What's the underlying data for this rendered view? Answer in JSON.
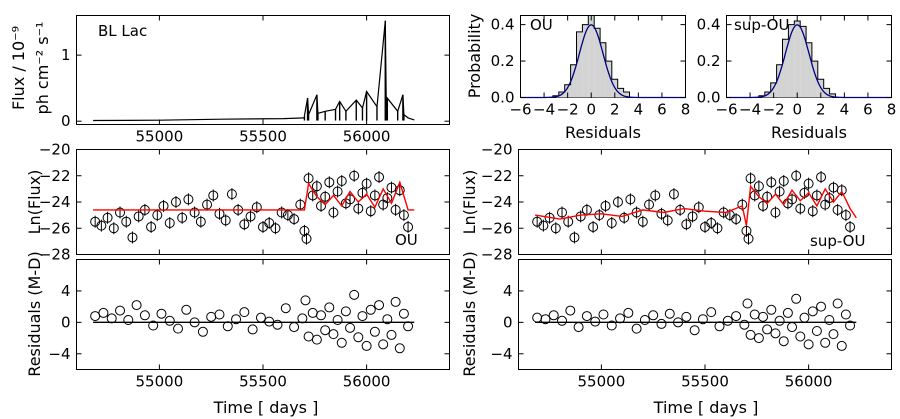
{
  "chart_data": [
    {
      "id": "flux",
      "type": "line",
      "annotation": "BL Lac",
      "ylabel_lines": [
        "Flux / 10⁻⁹",
        "ph cm⁻² s⁻¹"
      ],
      "xlim": [
        54600,
        56400
      ],
      "ylim": [
        -0.05,
        1.6
      ],
      "xticks": [
        55000,
        55500,
        56000
      ],
      "xticklabels": [
        "55000",
        "55500",
        "56000"
      ],
      "yticks": [
        0,
        1
      ],
      "yticklabels": [
        "0",
        "1"
      ],
      "baseline": 0.01,
      "series": [
        {
          "values_x": [
            54680,
            55000,
            55300,
            55600,
            55700
          ],
          "values_y": [
            0.01,
            0.015,
            0.03,
            0.04,
            0.05
          ]
        },
        {
          "values_x": [
            55700,
            55715,
            55720,
            55760,
            55765,
            55800,
            55850,
            55870,
            55900,
            55950,
            55980,
            56000,
            56050,
            56090,
            56095,
            56100,
            56150,
            56175,
            56180,
            56200,
            56230
          ],
          "values_y": [
            0.08,
            0.35,
            0.1,
            0.4,
            0.12,
            0.15,
            0.18,
            0.3,
            0.15,
            0.32,
            0.2,
            0.45,
            0.22,
            1.52,
            0.2,
            0.35,
            0.15,
            0.4,
            0.1,
            0.05,
            0.02
          ]
        }
      ]
    },
    {
      "id": "hist-ou",
      "type": "bar",
      "annotation": "OU",
      "ylabel": "Probability",
      "xlabel": "Residuals",
      "xlim": [
        -6,
        8
      ],
      "ylim": [
        0,
        0.45
      ],
      "xticks": [
        -6,
        -4,
        -2,
        0,
        2,
        4,
        6,
        8
      ],
      "xticklabels": [
        "−6",
        "−4",
        "−2",
        "0",
        "2",
        "4",
        "6",
        "8"
      ],
      "yticks": [
        0,
        0.2,
        0.4
      ],
      "yticklabels": [
        "0.0",
        "0.2",
        "0.4"
      ],
      "bin_centers": [
        -3.0,
        -2.5,
        -2.0,
        -1.5,
        -1.0,
        -0.5,
        0.0,
        0.5,
        1.0,
        1.5,
        2.0,
        2.5,
        3.0
      ],
      "values": [
        0.01,
        0.03,
        0.07,
        0.18,
        0.36,
        0.4,
        0.45,
        0.38,
        0.3,
        0.2,
        0.1,
        0.05,
        0.03
      ],
      "bin_width": 0.5,
      "fit_mean": 0.0,
      "fit_sigma": 1.0
    },
    {
      "id": "hist-supou",
      "type": "bar",
      "annotation": "sup-OU",
      "xlabel": "Residuals",
      "xlim": [
        -6,
        8
      ],
      "ylim": [
        0,
        0.45
      ],
      "xticks": [
        -6,
        -4,
        -2,
        0,
        2,
        4,
        6,
        8
      ],
      "xticklabels": [
        "−6",
        "−4",
        "−2",
        "0",
        "2",
        "4",
        "6",
        "8"
      ],
      "yticks": [
        0,
        0.2,
        0.4
      ],
      "yticklabels": [
        "0.0",
        "0.2",
        "0.4"
      ],
      "bin_centers": [
        -3.0,
        -2.5,
        -2.0,
        -1.5,
        -1.0,
        -0.5,
        0.0,
        0.5,
        1.0,
        1.5,
        2.0,
        2.5,
        3.0
      ],
      "values": [
        0.01,
        0.03,
        0.08,
        0.18,
        0.32,
        0.4,
        0.42,
        0.39,
        0.3,
        0.2,
        0.1,
        0.05,
        0.02
      ],
      "bin_width": 0.5,
      "fit_mean": 0.0,
      "fit_sigma": 1.0
    },
    {
      "id": "lnflux-ou",
      "type": "scatter",
      "annotation": "OU",
      "ylabel": "Ln(Flux)",
      "xlim": [
        54600,
        56400
      ],
      "ylim": [
        -28,
        -20
      ],
      "xticks": [
        55000,
        55500,
        56000
      ],
      "yticks": [
        -28,
        -26,
        -24,
        -22,
        -20
      ],
      "yticklabels": [
        "−28",
        "−26",
        "−24",
        "−22",
        "−20"
      ],
      "points_x": [
        54690,
        54720,
        54750,
        54780,
        54810,
        54840,
        54870,
        54900,
        54930,
        54960,
        54990,
        55020,
        55050,
        55080,
        55110,
        55140,
        55170,
        55200,
        55230,
        55260,
        55290,
        55320,
        55350,
        55380,
        55410,
        55440,
        55470,
        55500,
        55530,
        55560,
        55590,
        55620,
        55650,
        55680,
        55700,
        55710,
        55720,
        55740,
        55760,
        55780,
        55800,
        55820,
        55840,
        55860,
        55880,
        55900,
        55920,
        55940,
        55960,
        55980,
        56000,
        56020,
        56040,
        56060,
        56080,
        56100,
        56120,
        56140,
        56160,
        56180,
        56200
      ],
      "points_y": [
        -25.5,
        -25.8,
        -25.2,
        -26.0,
        -24.8,
        -25.5,
        -26.7,
        -25.1,
        -24.6,
        -25.9,
        -25.0,
        -24.3,
        -25.6,
        -24.0,
        -25.2,
        -23.8,
        -24.8,
        -25.5,
        -24.2,
        -23.5,
        -24.9,
        -25.4,
        -23.4,
        -24.6,
        -25.7,
        -25.1,
        -24.4,
        -25.9,
        -25.6,
        -26.0,
        -24.8,
        -25.0,
        -25.3,
        -24.2,
        -26.2,
        -26.8,
        -22.2,
        -23.5,
        -22.8,
        -24.3,
        -23.6,
        -22.5,
        -24.8,
        -23.2,
        -22.4,
        -24.1,
        -23.8,
        -22.0,
        -24.5,
        -23.3,
        -22.6,
        -24.7,
        -23.5,
        -22.1,
        -24.2,
        -23.7,
        -22.9,
        -24.6,
        -23.1,
        -25.0,
        -25.9
      ],
      "model_x": [
        54680,
        55000,
        55300,
        55600,
        55700,
        55720,
        55760,
        55800,
        55840,
        55880,
        55920,
        55960,
        56000,
        56040,
        56080,
        56120,
        56160,
        56200,
        56230
      ],
      "model_y": [
        -24.6,
        -24.6,
        -24.6,
        -24.6,
        -24.6,
        -22.6,
        -23.6,
        -24.2,
        -23.5,
        -24.3,
        -23.2,
        -24.0,
        -23.4,
        -24.4,
        -23.0,
        -24.1,
        -22.5,
        -24.6,
        -24.6
      ],
      "model_color": "#ff0000"
    },
    {
      "id": "lnflux-supou",
      "type": "scatter",
      "annotation": "sup-OU",
      "ylabel": "Ln(Flux)",
      "xlim": [
        54600,
        56400
      ],
      "ylim": [
        -28,
        -20
      ],
      "xticks": [
        55000,
        55500,
        56000
      ],
      "yticks": [
        -28,
        -26,
        -24,
        -22,
        -20
      ],
      "yticklabels": [
        "−28",
        "−26",
        "−24",
        "−22",
        "−20"
      ],
      "points_x": [
        54690,
        54720,
        54750,
        54780,
        54810,
        54840,
        54870,
        54900,
        54930,
        54960,
        54990,
        55020,
        55050,
        55080,
        55110,
        55140,
        55170,
        55200,
        55230,
        55260,
        55290,
        55320,
        55350,
        55380,
        55410,
        55440,
        55470,
        55500,
        55530,
        55560,
        55590,
        55620,
        55650,
        55680,
        55700,
        55710,
        55720,
        55740,
        55760,
        55780,
        55800,
        55820,
        55840,
        55860,
        55880,
        55900,
        55920,
        55940,
        55960,
        55980,
        56000,
        56020,
        56040,
        56060,
        56080,
        56100,
        56120,
        56140,
        56160,
        56180,
        56200
      ],
      "points_y": [
        -25.5,
        -25.8,
        -25.2,
        -26.0,
        -24.8,
        -25.5,
        -26.7,
        -25.1,
        -24.6,
        -25.9,
        -25.0,
        -24.3,
        -25.6,
        -24.0,
        -25.2,
        -23.8,
        -24.8,
        -25.5,
        -24.2,
        -23.5,
        -24.9,
        -25.4,
        -23.4,
        -24.6,
        -25.7,
        -25.1,
        -24.4,
        -25.9,
        -25.6,
        -26.0,
        -24.8,
        -25.0,
        -25.3,
        -24.2,
        -26.2,
        -26.8,
        -22.2,
        -23.5,
        -22.8,
        -24.3,
        -23.6,
        -22.5,
        -24.8,
        -23.2,
        -22.4,
        -24.1,
        -23.8,
        -22.0,
        -24.5,
        -23.3,
        -22.6,
        -24.7,
        -23.5,
        -22.1,
        -24.2,
        -23.7,
        -22.9,
        -24.6,
        -23.1,
        -25.0,
        -25.9
      ],
      "model_x": [
        54680,
        54800,
        54900,
        55000,
        55100,
        55200,
        55300,
        55400,
        55500,
        55600,
        55680,
        55700,
        55720,
        55760,
        55800,
        55840,
        55880,
        55920,
        55960,
        56000,
        56040,
        56080,
        56120,
        56160,
        56200,
        56230
      ],
      "model_y": [
        -25.0,
        -25.3,
        -25.0,
        -24.9,
        -25.1,
        -24.6,
        -24.8,
        -24.5,
        -24.7,
        -24.8,
        -24.3,
        -25.8,
        -22.8,
        -23.6,
        -24.1,
        -23.4,
        -24.2,
        -23.1,
        -23.9,
        -23.3,
        -24.3,
        -23.0,
        -24.0,
        -23.2,
        -24.5,
        -25.2
      ],
      "model_color": "#ff0000"
    },
    {
      "id": "resid-ou",
      "type": "scatter",
      "ylabel": "Residuals (M-D)",
      "xlabel": "Time [ days ]",
      "xlim": [
        54600,
        56400
      ],
      "ylim": [
        -6,
        8
      ],
      "xticks": [
        55000,
        55500,
        56000
      ],
      "xticklabels": [
        "55000",
        "55500",
        "56000"
      ],
      "yticks": [
        -4,
        0,
        4
      ],
      "yticklabels": [
        "−4",
        "0",
        "4"
      ],
      "zero_line_x": [
        54680,
        56230
      ],
      "points_x": [
        54690,
        54730,
        54770,
        54810,
        54850,
        54890,
        54930,
        54970,
        55010,
        55050,
        55090,
        55130,
        55170,
        55210,
        55250,
        55290,
        55330,
        55370,
        55410,
        55450,
        55490,
        55530,
        55570,
        55610,
        55650,
        55690,
        55705,
        55720,
        55740,
        55760,
        55780,
        55800,
        55820,
        55840,
        55860,
        55880,
        55900,
        55920,
        55940,
        55960,
        55980,
        56000,
        56020,
        56040,
        56060,
        56080,
        56100,
        56120,
        56140,
        56160,
        56180,
        56200
      ],
      "points_y": [
        0.8,
        1.2,
        0.5,
        1.5,
        0.3,
        2.2,
        0.9,
        -0.4,
        1.1,
        0.2,
        -0.8,
        1.6,
        0.0,
        -1.2,
        0.7,
        1.0,
        -0.5,
        0.4,
        1.3,
        -0.9,
        0.6,
        0.1,
        -0.3,
        1.8,
        -0.6,
        0.5,
        2.8,
        -1.8,
        1.2,
        -2.2,
        0.9,
        -1.0,
        1.9,
        -1.5,
        0.3,
        -2.6,
        1.4,
        -0.7,
        3.5,
        -1.9,
        0.8,
        -3.0,
        1.6,
        -1.2,
        2.2,
        -2.8,
        0.4,
        -1.6,
        2.6,
        -3.3,
        1.1,
        -0.5
      ]
    },
    {
      "id": "resid-supou",
      "type": "scatter",
      "ylabel": "Residuals (M-D)",
      "xlabel": "Time [ days ]",
      "xlim": [
        54600,
        56400
      ],
      "ylim": [
        -6,
        8
      ],
      "xticks": [
        55000,
        55500,
        56000
      ],
      "xticklabels": [
        "55000",
        "55500",
        "56000"
      ],
      "yticks": [
        -4,
        0,
        4
      ],
      "yticklabels": [
        "−4",
        "0",
        "4"
      ],
      "zero_line_x": [
        54680,
        56230
      ],
      "points_x": [
        54690,
        54730,
        54770,
        54810,
        54850,
        54890,
        54930,
        54970,
        55010,
        55050,
        55090,
        55130,
        55170,
        55210,
        55250,
        55290,
        55330,
        55370,
        55410,
        55450,
        55490,
        55530,
        55570,
        55610,
        55650,
        55690,
        55705,
        55720,
        55740,
        55760,
        55780,
        55800,
        55820,
        55840,
        55860,
        55880,
        55900,
        55920,
        55940,
        55960,
        55980,
        56000,
        56020,
        56040,
        56060,
        56080,
        56100,
        56120,
        56140,
        56160,
        56180,
        56200
      ],
      "points_y": [
        0.6,
        0.4,
        0.9,
        0.2,
        1.5,
        -0.6,
        0.8,
        0.1,
        1.0,
        -0.4,
        0.5,
        1.2,
        -0.8,
        0.3,
        0.9,
        -0.2,
        1.1,
        0.0,
        0.7,
        -1.0,
        0.4,
        1.3,
        -0.5,
        0.2,
        0.8,
        -0.3,
        2.4,
        -1.6,
        1.0,
        -2.0,
        0.7,
        -0.9,
        1.6,
        -1.4,
        0.2,
        -2.4,
        1.2,
        -0.6,
        3.0,
        -1.8,
        0.6,
        -2.8,
        1.4,
        -1.1,
        2.0,
        -2.6,
        0.3,
        -1.5,
        2.4,
        -3.0,
        1.0,
        -0.4
      ]
    }
  ]
}
